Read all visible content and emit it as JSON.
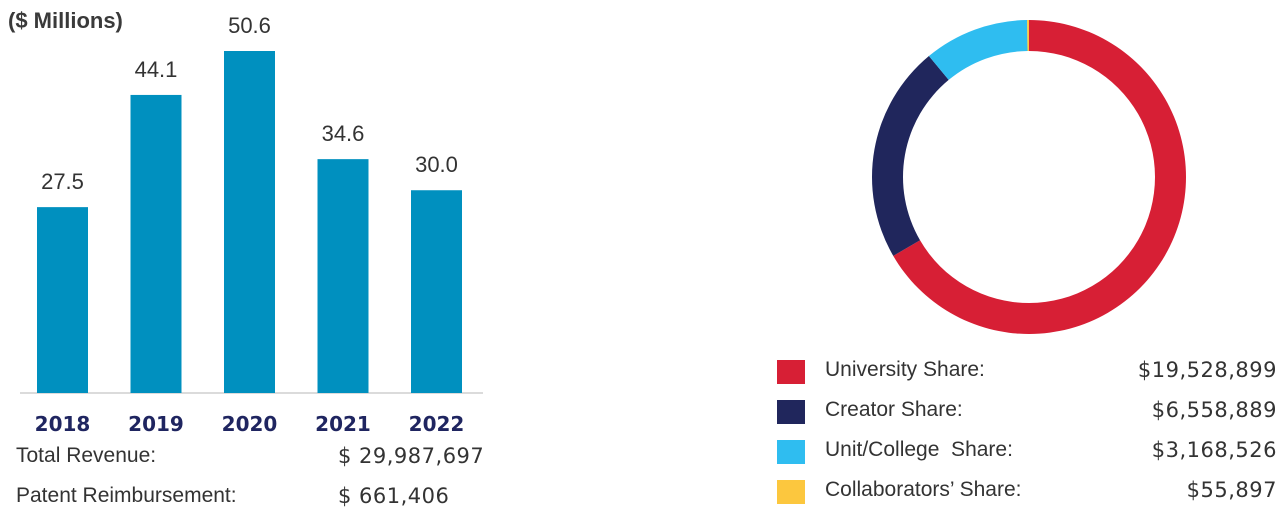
{
  "chart_data": [
    {
      "type": "bar",
      "unit_label": "($ Millions)",
      "categories": [
        "2018",
        "2019",
        "2020",
        "2021",
        "2022"
      ],
      "values": [
        27.5,
        44.1,
        50.6,
        34.6,
        30.0
      ],
      "value_labels": [
        "27.5",
        "44.1",
        "50.6",
        "34.6",
        "30.0"
      ],
      "color": "#0090bf",
      "axis_color": "#cfcfcf",
      "ylim": [
        0,
        50.6
      ]
    },
    {
      "type": "pie",
      "style": "donut",
      "slices": [
        {
          "label": "University Share:",
          "value": 19528899,
          "display": "$19,528,899",
          "color": "#d71f35"
        },
        {
          "label": "Creator Share:",
          "value": 6558889,
          "display": "$6,558,889",
          "color": "#20265c"
        },
        {
          "label": "Unit/College  Share:",
          "value": 3168526,
          "display": "$3,168,526",
          "color": "#2fbdf0"
        },
        {
          "label": "Collaborators’ Share:",
          "value": 55897,
          "display": "$55,897",
          "color": "#fcc73e"
        }
      ],
      "legend_position": "bottom"
    }
  ],
  "totals": [
    {
      "label": "Total Revenue:",
      "value": "$ 29,987,697"
    },
    {
      "label": "Patent Reimbursement:",
      "value": "$ 661,406"
    }
  ]
}
